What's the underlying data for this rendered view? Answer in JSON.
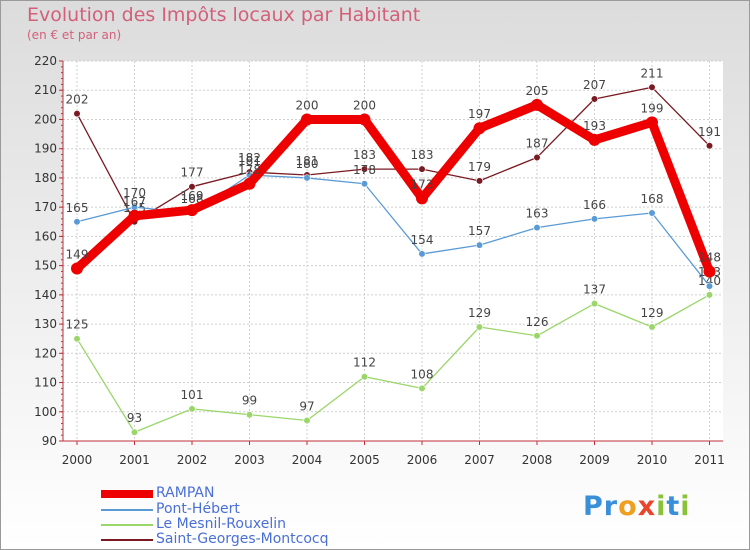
{
  "title": "Evolution des Impôts locaux par Habitant",
  "subtitle": "(en € et par an)",
  "logo": {
    "letters": [
      {
        "ch": "P",
        "color": "#3a8fd9"
      },
      {
        "ch": "r",
        "color": "#3a8fd9"
      },
      {
        "ch": "o",
        "color": "#f0a020"
      },
      {
        "ch": "x",
        "color": "#e8452c"
      },
      {
        "ch": "i",
        "color": "#8ac33a"
      },
      {
        "ch": "t",
        "color": "#3a8fd9"
      },
      {
        "ch": "i",
        "color": "#8ac33a"
      }
    ]
  },
  "chart_data": {
    "type": "line",
    "title": "Evolution des Impôts locaux par Habitant",
    "subtitle": "(en € et par an)",
    "x": [
      "2000",
      "2001",
      "2002",
      "2003",
      "2004",
      "2005",
      "2006",
      "2007",
      "2008",
      "2009",
      "2010",
      "2011"
    ],
    "ylim": [
      90,
      220
    ],
    "yticks": [
      90,
      100,
      110,
      120,
      130,
      140,
      150,
      160,
      170,
      180,
      190,
      200,
      210,
      220
    ],
    "grid": true,
    "legend_position": "bottom-left",
    "series": [
      {
        "name": "Saint-Georges-Montcocq",
        "color": "#7a1a22",
        "values": [
          202,
          165,
          177,
          182,
          181,
          183,
          183,
          179,
          187,
          207,
          211,
          191
        ]
      },
      {
        "name": "Le Mesnil-Rouxelin",
        "color": "#9bd66a",
        "values": [
          125,
          93,
          101,
          99,
          97,
          112,
          108,
          129,
          126,
          137,
          129,
          140
        ]
      },
      {
        "name": "Pont-Hébert",
        "color": "#5b9bd5",
        "values": [
          165,
          170,
          168,
          181,
          180,
          178,
          154,
          157,
          163,
          166,
          168,
          143
        ]
      },
      {
        "name": "RAMPAN",
        "color": "#ee0000",
        "values": [
          149,
          167,
          169,
          178,
          200,
          200,
          173,
          197,
          205,
          193,
          199,
          148
        ]
      }
    ],
    "legend_order": [
      "RAMPAN",
      "Pont-Hébert",
      "Le Mesnil-Rouxelin",
      "Saint-Georges-Montcocq"
    ]
  }
}
